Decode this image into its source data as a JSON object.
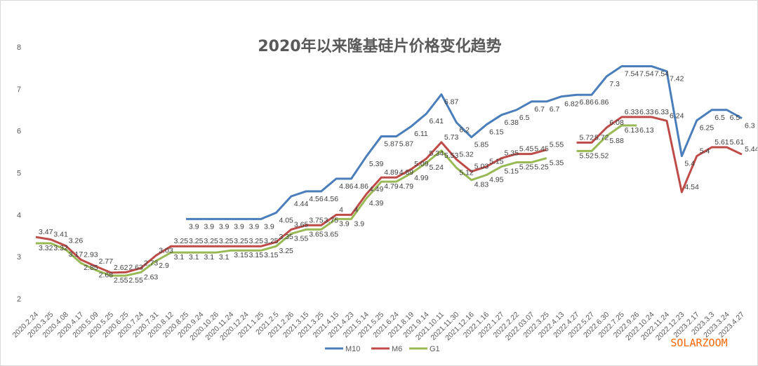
{
  "chart_data": {
    "type": "line",
    "title": "2020年以来隆基硅片价格变化趋势",
    "xlabel": "",
    "ylabel": "",
    "ylim": [
      2,
      8
    ],
    "yticks": [
      2,
      3,
      4,
      5,
      6,
      7,
      8
    ],
    "grid": false,
    "legend_position": "bottom",
    "categories": [
      "2020.2.24",
      "2020.3.25",
      "2020.4.08",
      "2020.4.17",
      "2020.5.09",
      "2020.5.25",
      "2020.6.25",
      "2020.7.24",
      "2020.7.31",
      "2020.8.12",
      "2020.8.25",
      "2020.9.24",
      "2020.10.26",
      "2020.11.24",
      "2020.12.24",
      "2021.1.25",
      "2021.2.5",
      "2021.2.26",
      "2021.3.15",
      "2021.3.25",
      "2021.4.15",
      "2021.4.23",
      "2021.5.14",
      "2021.5.25",
      "2021.6.24",
      "2021.8.19",
      "2021.9.14",
      "2021.10.11",
      "2021.11.30",
      "2021.12.16",
      "2022.1.16",
      "2022.1.27",
      "2022.2.22",
      "2022.03.07",
      "2022.3.25",
      "2022.4.13",
      "2022.4.27",
      "2022.5.27",
      "2022.6.30",
      "2022.7.25",
      "2022.9.26",
      "2022.10.24",
      "2022.11.24",
      "2022.12.23",
      "2023.2.17",
      "2023.3.3",
      "2023.3.24",
      "2023.4.27"
    ],
    "series": [
      {
        "name": "M10",
        "color": "#4a7ebb",
        "values": [
          null,
          null,
          null,
          null,
          null,
          null,
          null,
          null,
          null,
          null,
          3.9,
          3.9,
          3.9,
          3.9,
          3.9,
          3.9,
          4.05,
          4.44,
          4.56,
          4.56,
          4.86,
          4.86,
          5.39,
          5.87,
          5.87,
          6.11,
          6.41,
          6.87,
          6.2,
          5.85,
          6.15,
          6.38,
          6.5,
          6.7,
          6.7,
          6.82,
          6.86,
          6.86,
          7.3,
          7.54,
          7.54,
          7.54,
          7.42,
          5.4,
          6.25,
          6.5,
          6.5,
          6.3
        ]
      },
      {
        "name": "M6",
        "color": "#be4b48",
        "values": [
          3.47,
          3.41,
          3.26,
          2.93,
          2.77,
          2.62,
          2.63,
          2.73,
          3.03,
          3.25,
          3.25,
          3.25,
          3.25,
          3.25,
          3.25,
          3.25,
          3.35,
          3.65,
          3.75,
          3.75,
          4,
          4,
          4.49,
          4.89,
          4.89,
          5.09,
          5.34,
          5.73,
          5.32,
          5.03,
          5.15,
          5.35,
          5.45,
          5.45,
          5.55,
          null,
          5.72,
          5.72,
          6.08,
          6.33,
          6.33,
          6.33,
          6.24,
          4.54,
          5.4,
          5.61,
          5.61,
          5.44
        ]
      },
      {
        "name": "G1",
        "color": "#98b954",
        "values": [
          3.32,
          3.32,
          3.17,
          2.85,
          2.68,
          2.55,
          2.55,
          2.63,
          2.9,
          3.1,
          3.1,
          3.1,
          3.1,
          3.15,
          3.15,
          3.15,
          3.25,
          3.55,
          3.65,
          3.65,
          3.9,
          3.9,
          4.39,
          4.79,
          4.79,
          4.99,
          5.24,
          5.53,
          5.12,
          4.83,
          4.95,
          5.15,
          5.25,
          5.25,
          5.35,
          null,
          5.52,
          5.52,
          5.88,
          6.13,
          6.13,
          null,
          null,
          null,
          null,
          null,
          null,
          null
        ]
      }
    ]
  },
  "watermark": "SOLARZOOM"
}
